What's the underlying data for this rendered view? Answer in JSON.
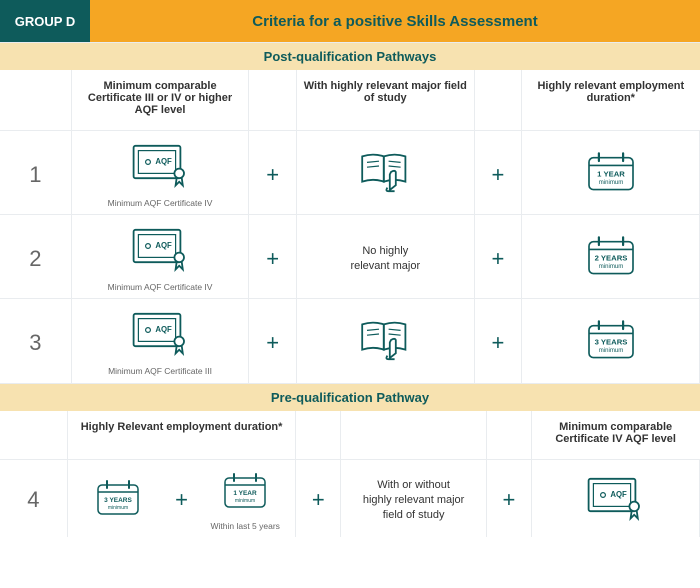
{
  "colors": {
    "teal": "#0e5b5b",
    "orange": "#f5a623",
    "cream": "#f7e2b0",
    "border": "#e9ecef",
    "grey_text": "#666666",
    "body_text": "#333333"
  },
  "typography": {
    "title_fontsize": 15,
    "band_fontsize": 13,
    "header_fontsize": 11,
    "number_fontsize": 22,
    "caption_fontsize": 8.5,
    "midtext_fontsize": 11
  },
  "header": {
    "group_label": "GROUP D",
    "title": "Criteria for a positive Skills Assessment"
  },
  "post": {
    "band": "Post-qualification Pathways",
    "col_headers": {
      "qualification": "Minimum comparable Certificate III or IV or higher AQF level",
      "major": "With highly relevant major field of study",
      "employment": "Highly relevant employment duration*"
    },
    "rows": [
      {
        "num": "1",
        "cert_caption": "Minimum AQF Certificate IV",
        "cert_label": "AQF",
        "major_type": "icon",
        "cal_line1": "1 YEAR",
        "cal_line2": "minimum"
      },
      {
        "num": "2",
        "cert_caption": "Minimum AQF Certificate IV",
        "cert_label": "AQF",
        "major_type": "text",
        "major_text_l1": "No highly",
        "major_text_l2": "relevant major",
        "cal_line1": "2 YEARS",
        "cal_line2": "minimum"
      },
      {
        "num": "3",
        "cert_caption": "Minimum AQF Certificate III",
        "cert_label": "AQF",
        "major_type": "icon",
        "cal_line1": "3 YEARS",
        "cal_line2": "minimum"
      }
    ]
  },
  "pre": {
    "band": "Pre-qualification Pathway",
    "col_headers": {
      "employment": "Highly Relevant employment duration*",
      "qualification": "Minimum comparable Certificate IV AQF level"
    },
    "row": {
      "num": "4",
      "cal_a_line1": "3 YEARS",
      "cal_a_line2": "minimum",
      "cal_b_line1": "1 YEAR",
      "cal_b_line2": "minimum",
      "employment_caption": "Within last 5 years",
      "mid_text_l1": "With or without",
      "mid_text_l2": "highly relevant major",
      "mid_text_l3": "field of study",
      "cert_label": "AQF"
    }
  },
  "plus_symbol": "+"
}
